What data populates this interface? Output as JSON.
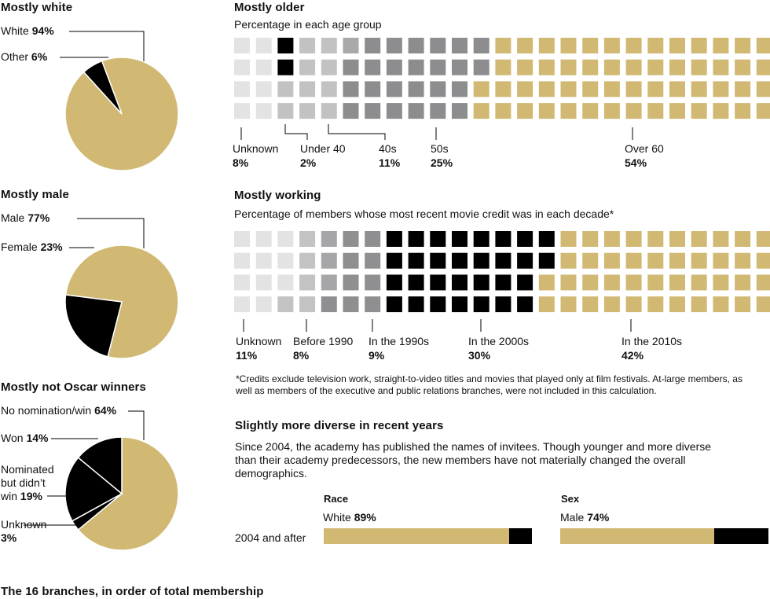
{
  "colors": {
    "gold": "#d1b974",
    "black": "#000000",
    "lightest": "#e3e3e3",
    "light": "#c7c7c8",
    "mid": "#b2b2b2",
    "dark": "#8c8c8e",
    "darkest": "#939395"
  },
  "pies": [
    {
      "title": "Mostly white",
      "slices": [
        {
          "label": "White",
          "pct": 94,
          "color": "#d1b974"
        },
        {
          "label": "Other",
          "pct": 6,
          "color": "#000000"
        }
      ]
    },
    {
      "title": "Mostly male",
      "slices": [
        {
          "label": "Male",
          "pct": 77,
          "color": "#d1b974"
        },
        {
          "label": "Female",
          "pct": 23,
          "color": "#000000"
        }
      ]
    },
    {
      "title": "Mostly not Oscar winners",
      "slices": [
        {
          "label": "No nomination/win",
          "pct": 64,
          "color": "#d1b974"
        },
        {
          "label": "Unknown",
          "pct": 3,
          "color": "#000000"
        },
        {
          "label": "Nominated but didn’t win",
          "pct": 19,
          "color": "#000000"
        },
        {
          "label": "Won",
          "pct": 14,
          "color": "#000000"
        }
      ]
    }
  ],
  "age": {
    "title": "Mostly older",
    "subtitle": "Percentage in each age group",
    "groups": [
      {
        "label": "Unknown",
        "pct": 8,
        "pct_text": "8%",
        "color": "#e3e3e3"
      },
      {
        "label": "Under 40",
        "pct": 2,
        "pct_text": "2%",
        "color": "#000000"
      },
      {
        "label": "40s",
        "pct": 11,
        "pct_text": "11%",
        "color": "#c7c7c8"
      },
      {
        "label": "50s",
        "pct": 25,
        "pct_text": "25%",
        "color": "#8c8c8e"
      },
      {
        "label": "Over 60",
        "pct": 54,
        "pct_text": "54%",
        "color": "#d1b974"
      }
    ]
  },
  "working": {
    "title": "Mostly working",
    "subtitle": "Percentage of members whose most recent movie credit was in each decade*",
    "groups": [
      {
        "label": "Unknown",
        "pct": 11,
        "pct_text": "11%",
        "color": "#e3e3e3"
      },
      {
        "label": "Before 1990",
        "pct": 8,
        "pct_text": "8%",
        "color": "#c7c7c8"
      },
      {
        "label": "In the 1990s",
        "pct": 9,
        "pct_text": "9%",
        "color": "#939395"
      },
      {
        "label": "In the 2000s",
        "pct": 30,
        "pct_text": "30%",
        "color": "#000000"
      },
      {
        "label": "In the 2010s",
        "pct": 42,
        "pct_text": "42%",
        "color": "#d1b974"
      }
    ],
    "footnote": "*Credits exclude television work, straight-to-video titles and movies that played only at film festivals. At-large members, as well as members of the executive and public relations branches, were not included in this calculation."
  },
  "diverse": {
    "title": "Slightly more diverse in recent years",
    "text": "Since 2004, the academy has published the names of invitees. Though younger and more diverse than their academy predecessors, the new members have not materially changed the overall demographics.",
    "row_label": "2004 and after",
    "bars": [
      {
        "heading": "Race",
        "label": "White",
        "pct": 89,
        "pct_text": "89%"
      },
      {
        "heading": "Sex",
        "label": "Male",
        "pct": 74,
        "pct_text": "74%"
      }
    ]
  },
  "footer": "The 16 branches, in order of total membership",
  "chart_data": [
    {
      "type": "pie",
      "title": "Mostly white",
      "categories": [
        "White",
        "Other"
      ],
      "values": [
        94,
        6
      ]
    },
    {
      "type": "pie",
      "title": "Mostly male",
      "categories": [
        "Male",
        "Female"
      ],
      "values": [
        77,
        23
      ]
    },
    {
      "type": "pie",
      "title": "Mostly not Oscar winners",
      "categories": [
        "No nomination/win",
        "Won",
        "Nominated but didn’t win",
        "Unknown"
      ],
      "values": [
        64,
        14,
        19,
        3
      ]
    },
    {
      "type": "waffle",
      "title": "Mostly older",
      "categories": [
        "Unknown",
        "Under 40",
        "40s",
        "50s",
        "Over 60"
      ],
      "values": [
        8,
        2,
        11,
        25,
        54
      ]
    },
    {
      "type": "waffle",
      "title": "Mostly working",
      "categories": [
        "Unknown",
        "Before 1990",
        "In the 1990s",
        "In the 2000s",
        "In the 2010s"
      ],
      "values": [
        11,
        8,
        9,
        30,
        42
      ]
    },
    {
      "type": "bar",
      "title": "Slightly more diverse in recent years",
      "categories": [
        "Race: White",
        "Sex: Male"
      ],
      "values": [
        89,
        74
      ],
      "xlim": [
        0,
        100
      ]
    }
  ]
}
